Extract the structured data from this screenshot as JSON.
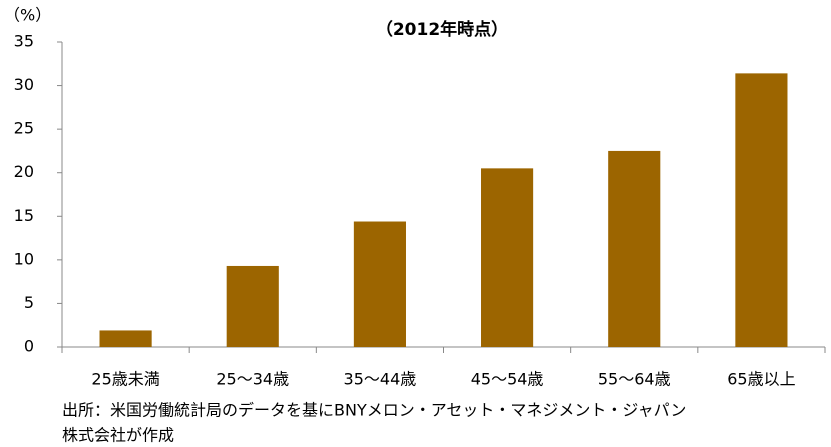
{
  "chart_data": {
    "type": "bar",
    "subtitle": "（2012年時点）",
    "y_label": "（%）",
    "categories": [
      "25歳未満",
      "25〜34歳",
      "35〜44歳",
      "45〜54歳",
      "55〜64歳",
      "65歳以上"
    ],
    "values": [
      1.9,
      9.3,
      14.4,
      20.5,
      22.5,
      31.4
    ],
    "color": "#9c6500",
    "ylim": [
      0,
      35
    ],
    "yticks": [
      0,
      5,
      10,
      15,
      20,
      25,
      30,
      35
    ],
    "grid": false,
    "source": [
      "出所：米国労働統計局のデータを基にBNYメロン・アセット・マネジメント・ジャパン",
      "株式会社が作成"
    ]
  }
}
